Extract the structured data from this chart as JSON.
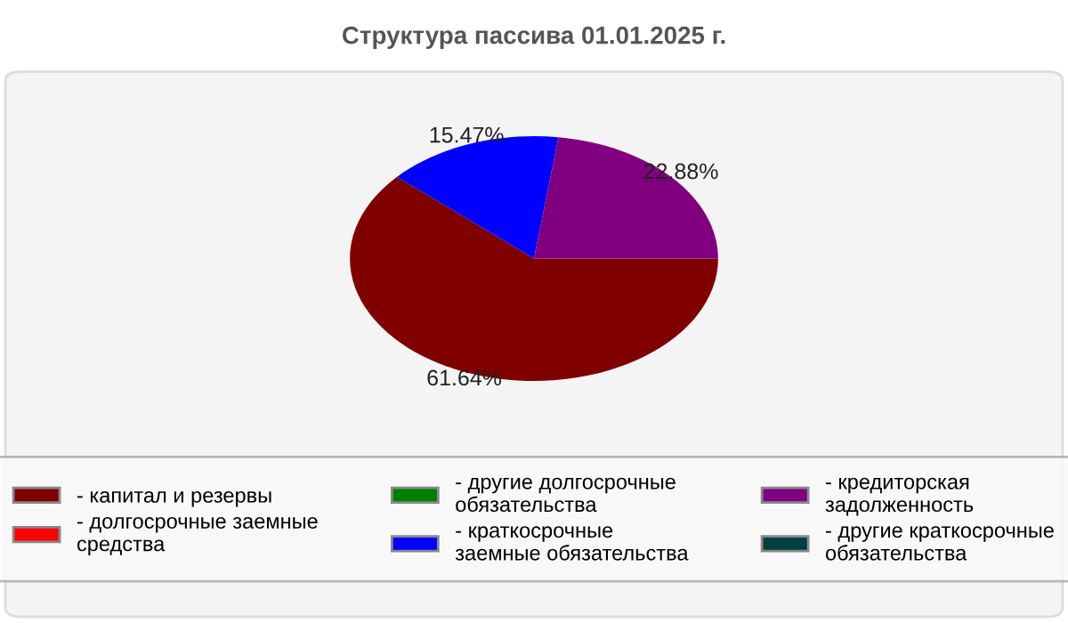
{
  "chart_data": {
    "type": "pie",
    "title": "Структура пассива 01.01.2025 г.",
    "categories": [
      "- капитал и резервы",
      "- долгосрочные заемные средства",
      "- другие долгосрочные обязательства",
      "- краткосрочные заемные обязательства",
      "- кредиторская задолженность",
      "- другие краткосрочные обязательства"
    ],
    "values": [
      61.64,
      0,
      0,
      15.47,
      22.88,
      0
    ],
    "value_labels": [
      "61.64%",
      null,
      null,
      "15.47%",
      "22.88%",
      null
    ],
    "colors": [
      "#800000",
      "#ff0000",
      "#008000",
      "#0000ff",
      "#800080",
      "#004040"
    ],
    "legend": "bottom"
  }
}
